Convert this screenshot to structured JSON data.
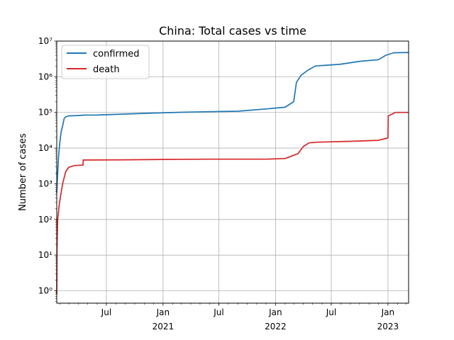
{
  "chart_data": {
    "type": "line",
    "title": "China: Total cases vs time",
    "xlabel": "",
    "ylabel": "Number of cases",
    "yscale": "log",
    "ylim": [
      0.45,
      10000000
    ],
    "xlim": [
      "2020-01-22",
      "2023-03-09"
    ],
    "grid": true,
    "legend": {
      "position": "top-left"
    },
    "x_ticks": [
      {
        "date": "2020-07-01",
        "label": "Jul",
        "sublabel": ""
      },
      {
        "date": "2021-01-01",
        "label": "Jan",
        "sublabel": "2021"
      },
      {
        "date": "2021-07-01",
        "label": "Jul",
        "sublabel": ""
      },
      {
        "date": "2022-01-01",
        "label": "Jan",
        "sublabel": "2022"
      },
      {
        "date": "2022-07-01",
        "label": "Jul",
        "sublabel": ""
      },
      {
        "date": "2023-01-01",
        "label": "Jan",
        "sublabel": "2023"
      }
    ],
    "y_ticks": [
      {
        "value": 1,
        "label": "10⁰"
      },
      {
        "value": 10,
        "label": "10¹"
      },
      {
        "value": 100,
        "label": "10²"
      },
      {
        "value": 1000,
        "label": "10³"
      },
      {
        "value": 10000,
        "label": "10⁴"
      },
      {
        "value": 100000,
        "label": "10⁵"
      },
      {
        "value": 1000000,
        "label": "10⁶"
      },
      {
        "value": 10000000,
        "label": "10⁷"
      }
    ],
    "series": [
      {
        "name": "confirmed",
        "color": "#1f77b4",
        "points": [
          [
            "2020-01-22",
            550
          ],
          [
            "2020-01-25",
            2000
          ],
          [
            "2020-01-28",
            6000
          ],
          [
            "2020-02-01",
            14000
          ],
          [
            "2020-02-05",
            28000
          ],
          [
            "2020-02-10",
            42000
          ],
          [
            "2020-02-15",
            67000
          ],
          [
            "2020-02-20",
            75000
          ],
          [
            "2020-03-01",
            80000
          ],
          [
            "2020-04-01",
            82000
          ],
          [
            "2020-04-17",
            84000
          ],
          [
            "2020-06-01",
            84500
          ],
          [
            "2020-09-01",
            90000
          ],
          [
            "2020-12-01",
            96000
          ],
          [
            "2021-03-01",
            101000
          ],
          [
            "2021-06-01",
            105000
          ],
          [
            "2021-09-01",
            108000
          ],
          [
            "2021-12-01",
            125000
          ],
          [
            "2022-02-01",
            140000
          ],
          [
            "2022-03-01",
            200000
          ],
          [
            "2022-03-10",
            700000
          ],
          [
            "2022-03-25",
            1100000
          ],
          [
            "2022-04-15",
            1500000
          ],
          [
            "2022-05-10",
            2000000
          ],
          [
            "2022-06-15",
            2100000
          ],
          [
            "2022-08-01",
            2250000
          ],
          [
            "2022-10-01",
            2700000
          ],
          [
            "2022-12-01",
            3000000
          ],
          [
            "2022-12-25",
            4000000
          ],
          [
            "2023-01-20",
            4700000
          ],
          [
            "2023-03-09",
            4800000
          ]
        ]
      },
      {
        "name": "death",
        "color": "#d62728",
        "points": [
          [
            "2020-01-22",
            0.8
          ],
          [
            "2020-01-23",
            17
          ],
          [
            "2020-01-25",
            100
          ],
          [
            "2020-01-30",
            260
          ],
          [
            "2020-02-05",
            560
          ],
          [
            "2020-02-10",
            1000
          ],
          [
            "2020-02-20",
            2200
          ],
          [
            "2020-03-01",
            2900
          ],
          [
            "2020-03-20",
            3250
          ],
          [
            "2020-04-16",
            3340
          ],
          [
            "2020-04-17",
            4630
          ],
          [
            "2020-09-01",
            4700
          ],
          [
            "2021-01-01",
            4800
          ],
          [
            "2021-06-01",
            4900
          ],
          [
            "2021-12-01",
            4900
          ],
          [
            "2022-02-01",
            5100
          ],
          [
            "2022-03-15",
            7000
          ],
          [
            "2022-04-01",
            11000
          ],
          [
            "2022-04-20",
            14000
          ],
          [
            "2022-05-20",
            14700
          ],
          [
            "2022-09-01",
            15500
          ],
          [
            "2022-12-01",
            16500
          ],
          [
            "2022-12-30",
            19000
          ],
          [
            "2023-01-01",
            19500
          ],
          [
            "2023-01-02",
            80000
          ],
          [
            "2023-01-15",
            90000
          ],
          [
            "2023-01-25",
            100000
          ],
          [
            "2023-03-09",
            100000
          ]
        ]
      }
    ]
  }
}
